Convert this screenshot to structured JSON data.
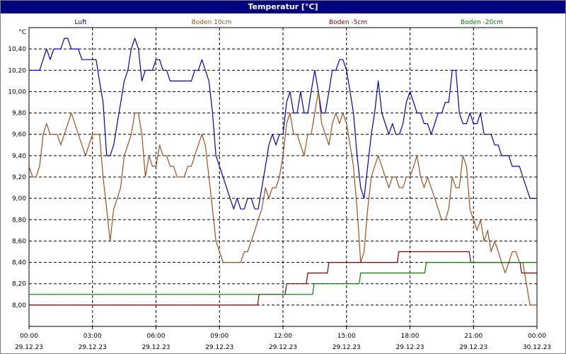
{
  "window": {
    "title": "Temperatur [°C]"
  },
  "chart_data": {
    "type": "line",
    "ylabel": "°C",
    "ylim": [
      7.8,
      10.6
    ],
    "y_ticks": [
      "10,40",
      "10,20",
      "10,00",
      "9,80",
      "9,60",
      "9,40",
      "9,20",
      "9,00",
      "8,80",
      "8,60",
      "8,40",
      "8,20",
      "8,00"
    ],
    "y_tick_values": [
      10.4,
      10.2,
      10.0,
      9.8,
      9.6,
      9.4,
      9.2,
      9.0,
      8.8,
      8.6,
      8.4,
      8.2,
      8.0
    ],
    "xlim": [
      0,
      24
    ],
    "x_ticks": [
      {
        "time": "00:00",
        "date": "29.12.23",
        "h": 0
      },
      {
        "time": "03:00",
        "date": "29.12.23",
        "h": 3
      },
      {
        "time": "06:00",
        "date": "29.12.23",
        "h": 6
      },
      {
        "time": "09:00",
        "date": "29.12.23",
        "h": 9
      },
      {
        "time": "12:00",
        "date": "29.12.23",
        "h": 12
      },
      {
        "time": "15:00",
        "date": "29.12.23",
        "h": 15
      },
      {
        "time": "18:00",
        "date": "29.12.23",
        "h": 18
      },
      {
        "time": "21:00",
        "date": "29.12.23",
        "h": 21
      },
      {
        "time": "00:00",
        "date": "30.12.23",
        "h": 24
      }
    ],
    "grid": true,
    "legend_position": "top",
    "series": [
      {
        "name": "Luft",
        "color": "#0000c0",
        "points": [
          [
            0,
            10.2
          ],
          [
            0.5,
            10.2
          ],
          [
            0.83,
            10.4
          ],
          [
            1,
            10.3
          ],
          [
            1.17,
            10.4
          ],
          [
            1.5,
            10.4
          ],
          [
            1.67,
            10.5
          ],
          [
            1.83,
            10.5
          ],
          [
            2,
            10.4
          ],
          [
            2.33,
            10.4
          ],
          [
            2.5,
            10.3
          ],
          [
            3.17,
            10.3
          ],
          [
            3.33,
            10.1
          ],
          [
            3.5,
            9.9
          ],
          [
            3.67,
            9.4
          ],
          [
            3.83,
            9.4
          ],
          [
            4,
            9.5
          ],
          [
            4.5,
            10.1
          ],
          [
            4.67,
            10.2
          ],
          [
            4.83,
            10.4
          ],
          [
            5,
            10.5
          ],
          [
            5.17,
            10.4
          ],
          [
            5.33,
            10.1
          ],
          [
            5.5,
            10.2
          ],
          [
            5.83,
            10.2
          ],
          [
            6,
            10.3
          ],
          [
            6.17,
            10.3
          ],
          [
            6.33,
            10.2
          ],
          [
            6.5,
            10.2
          ],
          [
            6.67,
            10.1
          ],
          [
            7.67,
            10.1
          ],
          [
            7.83,
            10.2
          ],
          [
            8,
            10.2
          ],
          [
            8.17,
            10.3
          ],
          [
            8.5,
            10.1
          ],
          [
            8.67,
            9.8
          ],
          [
            8.83,
            9.4
          ],
          [
            9,
            9.3
          ],
          [
            9.17,
            9.2
          ],
          [
            9.5,
            9.0
          ],
          [
            9.67,
            8.9
          ],
          [
            9.83,
            9.0
          ],
          [
            10,
            8.9
          ],
          [
            10.17,
            8.9
          ],
          [
            10.33,
            9.0
          ],
          [
            10.5,
            9.0
          ],
          [
            10.67,
            8.9
          ],
          [
            10.83,
            8.9
          ],
          [
            11,
            9.1
          ],
          [
            11.17,
            9.3
          ],
          [
            11.33,
            9.5
          ],
          [
            11.5,
            9.6
          ],
          [
            11.67,
            9.5
          ],
          [
            11.83,
            9.6
          ],
          [
            12,
            9.6
          ],
          [
            12.17,
            9.9
          ],
          [
            12.33,
            10.0
          ],
          [
            12.5,
            9.8
          ],
          [
            12.67,
            9.8
          ],
          [
            12.83,
            10.0
          ],
          [
            13,
            9.8
          ],
          [
            13.17,
            9.8
          ],
          [
            13.33,
            10.0
          ],
          [
            13.5,
            10.2
          ],
          [
            13.67,
            10.0
          ],
          [
            13.83,
            9.8
          ],
          [
            14,
            9.8
          ],
          [
            14.17,
            10.0
          ],
          [
            14.33,
            10.2
          ],
          [
            14.5,
            10.2
          ],
          [
            14.67,
            10.3
          ],
          [
            14.83,
            10.3
          ],
          [
            15,
            10.2
          ],
          [
            15.17,
            10.0
          ],
          [
            15.33,
            9.8
          ],
          [
            15.5,
            9.4
          ],
          [
            15.67,
            9.1
          ],
          [
            15.83,
            9.0
          ],
          [
            16,
            9.3
          ],
          [
            16.17,
            9.6
          ],
          [
            16.33,
            9.8
          ],
          [
            16.5,
            10.1
          ],
          [
            16.67,
            9.8
          ],
          [
            16.83,
            9.7
          ],
          [
            17,
            9.6
          ],
          [
            17.17,
            9.7
          ],
          [
            17.33,
            9.6
          ],
          [
            17.5,
            9.6
          ],
          [
            17.67,
            9.7
          ],
          [
            17.83,
            9.9
          ],
          [
            18,
            10.0
          ],
          [
            18.17,
            9.9
          ],
          [
            18.33,
            9.8
          ],
          [
            18.5,
            9.8
          ],
          [
            18.67,
            9.7
          ],
          [
            18.83,
            9.7
          ],
          [
            19,
            9.6
          ],
          [
            19.17,
            9.7
          ],
          [
            19.33,
            9.8
          ],
          [
            19.5,
            9.8
          ],
          [
            19.67,
            9.9
          ],
          [
            19.83,
            9.9
          ],
          [
            20,
            10.2
          ],
          [
            20.17,
            10.2
          ],
          [
            20.33,
            9.8
          ],
          [
            20.5,
            9.7
          ],
          [
            20.67,
            9.7
          ],
          [
            20.83,
            9.8
          ],
          [
            21,
            9.7
          ],
          [
            21.17,
            9.7
          ],
          [
            21.33,
            9.8
          ],
          [
            21.5,
            9.6
          ],
          [
            21.83,
            9.6
          ],
          [
            22,
            9.5
          ],
          [
            22.17,
            9.5
          ],
          [
            22.33,
            9.4
          ],
          [
            22.67,
            9.4
          ],
          [
            22.83,
            9.3
          ],
          [
            23.17,
            9.3
          ],
          [
            23.33,
            9.2
          ],
          [
            23.67,
            9.0
          ],
          [
            24,
            9.0
          ]
        ]
      },
      {
        "name": "Boden 10cm",
        "color": "#a0501e",
        "points": [
          [
            0,
            9.3
          ],
          [
            0.17,
            9.2
          ],
          [
            0.33,
            9.2
          ],
          [
            0.5,
            9.3
          ],
          [
            0.67,
            9.6
          ],
          [
            0.83,
            9.7
          ],
          [
            1,
            9.6
          ],
          [
            1.17,
            9.6
          ],
          [
            1.33,
            9.6
          ],
          [
            1.5,
            9.5
          ],
          [
            1.67,
            9.6
          ],
          [
            2,
            9.8
          ],
          [
            2.33,
            9.6
          ],
          [
            2.5,
            9.5
          ],
          [
            2.67,
            9.4
          ],
          [
            2.83,
            9.5
          ],
          [
            3,
            9.6
          ],
          [
            3.17,
            9.6
          ],
          [
            3.33,
            9.6
          ],
          [
            3.5,
            9.2
          ],
          [
            3.67,
            8.9
          ],
          [
            3.83,
            8.6
          ],
          [
            4,
            8.9
          ],
          [
            4.17,
            9.0
          ],
          [
            4.33,
            9.1
          ],
          [
            4.5,
            9.4
          ],
          [
            4.67,
            9.5
          ],
          [
            4.83,
            9.6
          ],
          [
            5,
            9.8
          ],
          [
            5.17,
            9.8
          ],
          [
            5.33,
            9.6
          ],
          [
            5.5,
            9.2
          ],
          [
            5.67,
            9.4
          ],
          [
            5.83,
            9.3
          ],
          [
            6,
            9.3
          ],
          [
            6.17,
            9.5
          ],
          [
            6.33,
            9.4
          ],
          [
            6.5,
            9.4
          ],
          [
            6.67,
            9.3
          ],
          [
            6.83,
            9.3
          ],
          [
            7,
            9.2
          ],
          [
            7.33,
            9.2
          ],
          [
            7.5,
            9.3
          ],
          [
            7.67,
            9.3
          ],
          [
            7.83,
            9.4
          ],
          [
            8,
            9.5
          ],
          [
            8.17,
            9.6
          ],
          [
            8.33,
            9.5
          ],
          [
            8.5,
            9.2
          ],
          [
            8.67,
            8.9
          ],
          [
            8.83,
            8.6
          ],
          [
            9,
            8.5
          ],
          [
            9.17,
            8.4
          ],
          [
            10,
            8.4
          ],
          [
            10.17,
            8.5
          ],
          [
            10.33,
            8.5
          ],
          [
            10.5,
            8.6
          ],
          [
            10.67,
            8.7
          ],
          [
            10.83,
            8.8
          ],
          [
            11,
            8.9
          ],
          [
            11.17,
            9.1
          ],
          [
            11.33,
            9.0
          ],
          [
            11.5,
            9.1
          ],
          [
            11.67,
            9.1
          ],
          [
            11.83,
            9.2
          ],
          [
            12,
            9.4
          ],
          [
            12.17,
            9.7
          ],
          [
            12.33,
            9.8
          ],
          [
            12.5,
            9.6
          ],
          [
            12.67,
            9.6
          ],
          [
            12.83,
            9.5
          ],
          [
            13,
            9.4
          ],
          [
            13.17,
            9.6
          ],
          [
            13.33,
            9.6
          ],
          [
            13.5,
            9.8
          ],
          [
            13.67,
            10.0
          ],
          [
            13.83,
            9.7
          ],
          [
            14,
            9.6
          ],
          [
            14.17,
            9.5
          ],
          [
            14.33,
            9.7
          ],
          [
            14.5,
            9.8
          ],
          [
            14.67,
            9.7
          ],
          [
            14.83,
            9.8
          ],
          [
            15,
            9.7
          ],
          [
            15.17,
            9.5
          ],
          [
            15.33,
            9.3
          ],
          [
            15.5,
            8.9
          ],
          [
            15.67,
            8.4
          ],
          [
            15.83,
            8.5
          ],
          [
            16,
            8.9
          ],
          [
            16.17,
            9.2
          ],
          [
            16.33,
            9.3
          ],
          [
            16.5,
            9.4
          ],
          [
            16.67,
            9.3
          ],
          [
            16.83,
            9.2
          ],
          [
            17,
            9.1
          ],
          [
            17.17,
            9.2
          ],
          [
            17.33,
            9.2
          ],
          [
            17.5,
            9.1
          ],
          [
            17.67,
            9.1
          ],
          [
            17.83,
            9.2
          ],
          [
            18,
            9.2
          ],
          [
            18.17,
            9.3
          ],
          [
            18.33,
            9.4
          ],
          [
            18.5,
            9.2
          ],
          [
            18.67,
            9.1
          ],
          [
            18.83,
            9.2
          ],
          [
            19,
            9.1
          ],
          [
            19.17,
            9.0
          ],
          [
            19.33,
            8.9
          ],
          [
            19.5,
            8.8
          ],
          [
            19.67,
            8.8
          ],
          [
            19.83,
            8.9
          ],
          [
            20,
            9.2
          ],
          [
            20.17,
            9.1
          ],
          [
            20.33,
            9.1
          ],
          [
            20.5,
            9.4
          ],
          [
            20.67,
            9.3
          ],
          [
            20.83,
            8.9
          ],
          [
            21,
            8.8
          ],
          [
            21.17,
            8.7
          ],
          [
            21.33,
            8.8
          ],
          [
            21.5,
            8.6
          ],
          [
            21.67,
            8.7
          ],
          [
            21.83,
            8.5
          ],
          [
            22,
            8.6
          ],
          [
            22.17,
            8.5
          ],
          [
            22.33,
            8.4
          ],
          [
            22.5,
            8.3
          ],
          [
            22.67,
            8.4
          ],
          [
            22.83,
            8.5
          ],
          [
            23,
            8.5
          ],
          [
            23.17,
            8.4
          ],
          [
            23.33,
            8.4
          ],
          [
            23.5,
            8.2
          ],
          [
            23.67,
            8.0
          ],
          [
            24,
            8.0
          ]
        ]
      },
      {
        "name": "Boden -5cm",
        "color": "#800000",
        "points": [
          [
            0,
            8.0
          ],
          [
            10.8,
            8.0
          ],
          [
            10.87,
            8.1
          ],
          [
            12.1,
            8.1
          ],
          [
            12.17,
            8.2
          ],
          [
            13.1,
            8.2
          ],
          [
            13.17,
            8.3
          ],
          [
            14.1,
            8.3
          ],
          [
            14.17,
            8.4
          ],
          [
            17.4,
            8.4
          ],
          [
            17.47,
            8.5
          ],
          [
            20.8,
            8.5
          ],
          [
            20.87,
            8.4
          ],
          [
            23.2,
            8.4
          ],
          [
            23.27,
            8.3
          ],
          [
            24,
            8.3
          ]
        ]
      },
      {
        "name": "Boden -20cm",
        "color": "#008000",
        "points": [
          [
            0,
            8.1
          ],
          [
            13.4,
            8.1
          ],
          [
            13.47,
            8.2
          ],
          [
            15.6,
            8.2
          ],
          [
            15.67,
            8.3
          ],
          [
            18.7,
            8.3
          ],
          [
            18.77,
            8.4
          ],
          [
            24,
            8.4
          ]
        ]
      }
    ]
  }
}
